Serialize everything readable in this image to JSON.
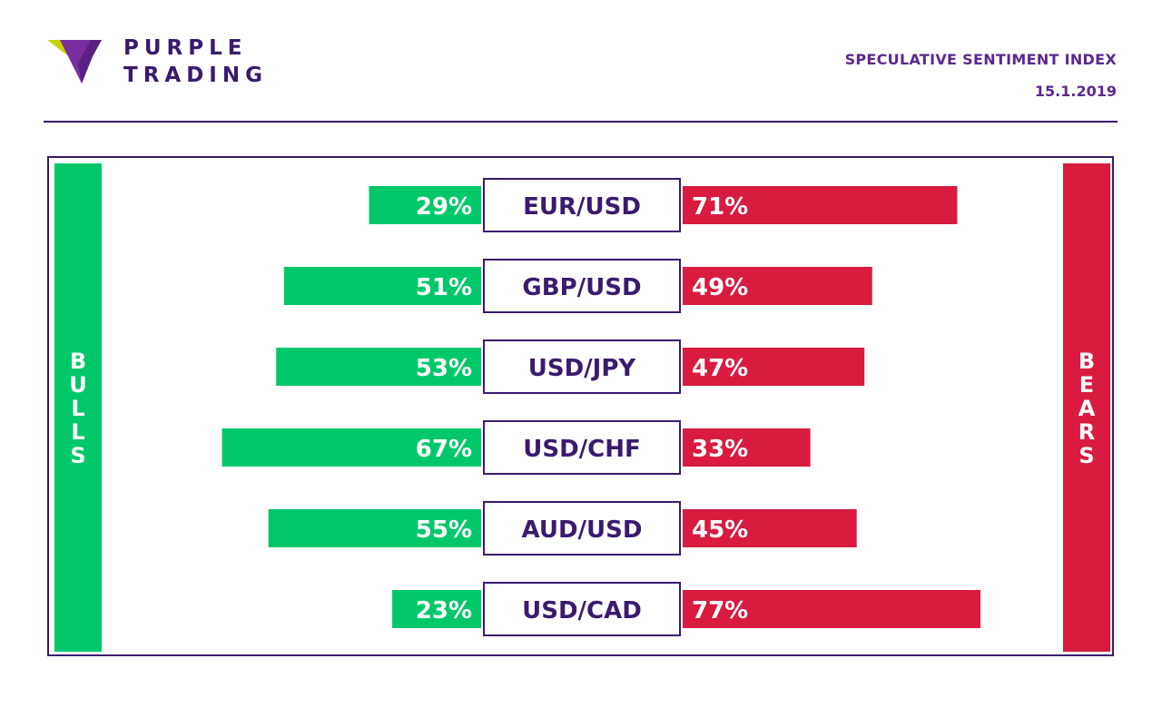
{
  "brand": {
    "line1": "PURPLE",
    "line2": "TRADING"
  },
  "header": {
    "title": "SPECULATIVE SENTIMENT INDEX",
    "date": "15.1.2019"
  },
  "labels": {
    "bulls": "BULLS",
    "bears": "BEARS"
  },
  "colors": {
    "bull": "#00c86a",
    "bear": "#d81b3f",
    "accent": "#3a1a6e"
  },
  "chart_data": {
    "type": "bar",
    "categories": [
      "EUR/USD",
      "GBP/USD",
      "USD/JPY",
      "USD/CHF",
      "AUD/USD",
      "USD/CAD"
    ],
    "series": [
      {
        "name": "BULLS",
        "values": [
          29,
          51,
          53,
          67,
          55,
          23
        ]
      },
      {
        "name": "BEARS",
        "values": [
          71,
          49,
          47,
          33,
          45,
          77
        ]
      }
    ],
    "value_labels": {
      "BULLS": [
        "29%",
        "51%",
        "53%",
        "67%",
        "55%",
        "23%"
      ],
      "BEARS": [
        "71%",
        "49%",
        "47%",
        "33%",
        "45%",
        "77%"
      ]
    },
    "title": "SPECULATIVE SENTIMENT INDEX",
    "xlabel": "",
    "ylabel": "",
    "orientation": "diverging-horizontal"
  }
}
